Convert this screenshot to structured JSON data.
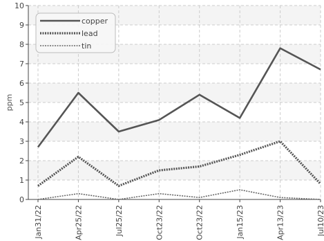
{
  "chart_data": {
    "type": "line",
    "title": "",
    "xlabel": "",
    "ylabel": "ppm",
    "ylim": [
      0,
      10
    ],
    "yticks": [
      0,
      1,
      2,
      3,
      4,
      5,
      6,
      7,
      8,
      9,
      10
    ],
    "x": [
      "Jan31/22",
      "Apr25/22",
      "Jul25/22",
      "Oct23/22",
      "Oct23/22",
      "Jan15/23",
      "Apr13/23",
      "Jul10/23"
    ],
    "grid": true,
    "legend_position": "top-left",
    "series": [
      {
        "name": "copper",
        "values": [
          2.7,
          5.5,
          3.5,
          4.1,
          5.4,
          4.2,
          7.8,
          6.7
        ],
        "color": "#555555",
        "style": "solid"
      },
      {
        "name": "lead",
        "values": [
          0.7,
          2.2,
          0.7,
          1.5,
          1.7,
          2.3,
          3.0,
          0.8
        ],
        "color": "#555555",
        "style": "dotted"
      },
      {
        "name": "tin",
        "values": [
          0.0,
          0.3,
          0.0,
          0.3,
          0.1,
          0.5,
          0.1,
          0.0
        ],
        "color": "#666666",
        "style": "dotted"
      }
    ]
  }
}
